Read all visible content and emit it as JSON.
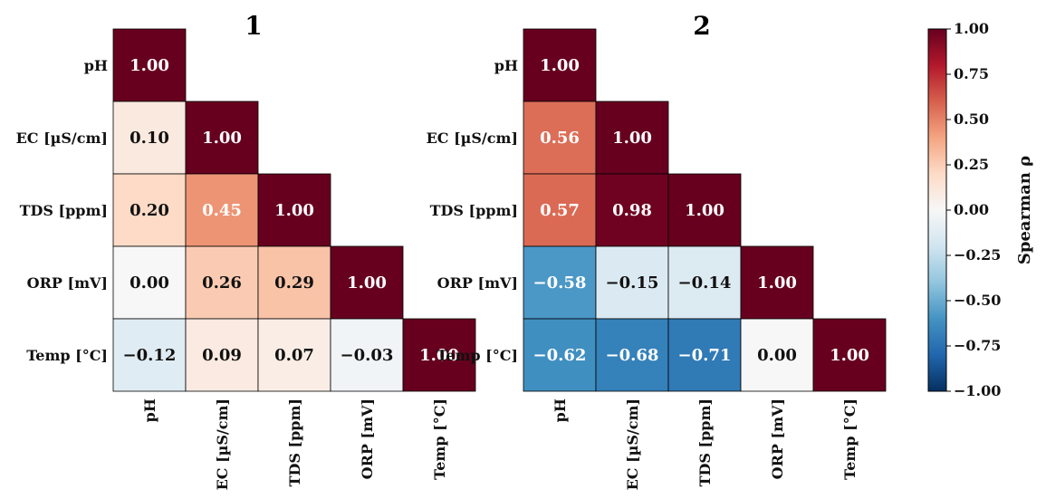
{
  "chart_data": {
    "type": "heatmap",
    "variables": [
      "pH",
      "EC [µS/cm]",
      "TDS [ppm]",
      "ORP [mV]",
      "Temp [°C]"
    ],
    "panels": [
      {
        "title": "1",
        "matrix": [
          [
            1.0,
            null,
            null,
            null,
            null
          ],
          [
            0.1,
            1.0,
            null,
            null,
            null
          ],
          [
            0.2,
            0.45,
            1.0,
            null,
            null
          ],
          [
            0.0,
            0.26,
            0.29,
            1.0,
            null
          ],
          [
            -0.12,
            0.09,
            0.07,
            -0.03,
            1.0
          ]
        ]
      },
      {
        "title": "2",
        "matrix": [
          [
            1.0,
            null,
            null,
            null,
            null
          ],
          [
            0.56,
            1.0,
            null,
            null,
            null
          ],
          [
            0.57,
            0.98,
            1.0,
            null,
            null
          ],
          [
            -0.58,
            -0.15,
            -0.14,
            1.0,
            null
          ],
          [
            -0.62,
            -0.68,
            -0.71,
            0.0,
            1.0
          ]
        ]
      }
    ],
    "colorbar": {
      "label": "Spearman ρ",
      "range": [
        -1.0,
        1.0
      ],
      "ticks": [
        "1.00",
        "0.75",
        "0.50",
        "0.25",
        "0.00",
        "−0.25",
        "−0.50",
        "−0.75",
        "−1.00"
      ],
      "colormap": "RdBu_r"
    }
  }
}
